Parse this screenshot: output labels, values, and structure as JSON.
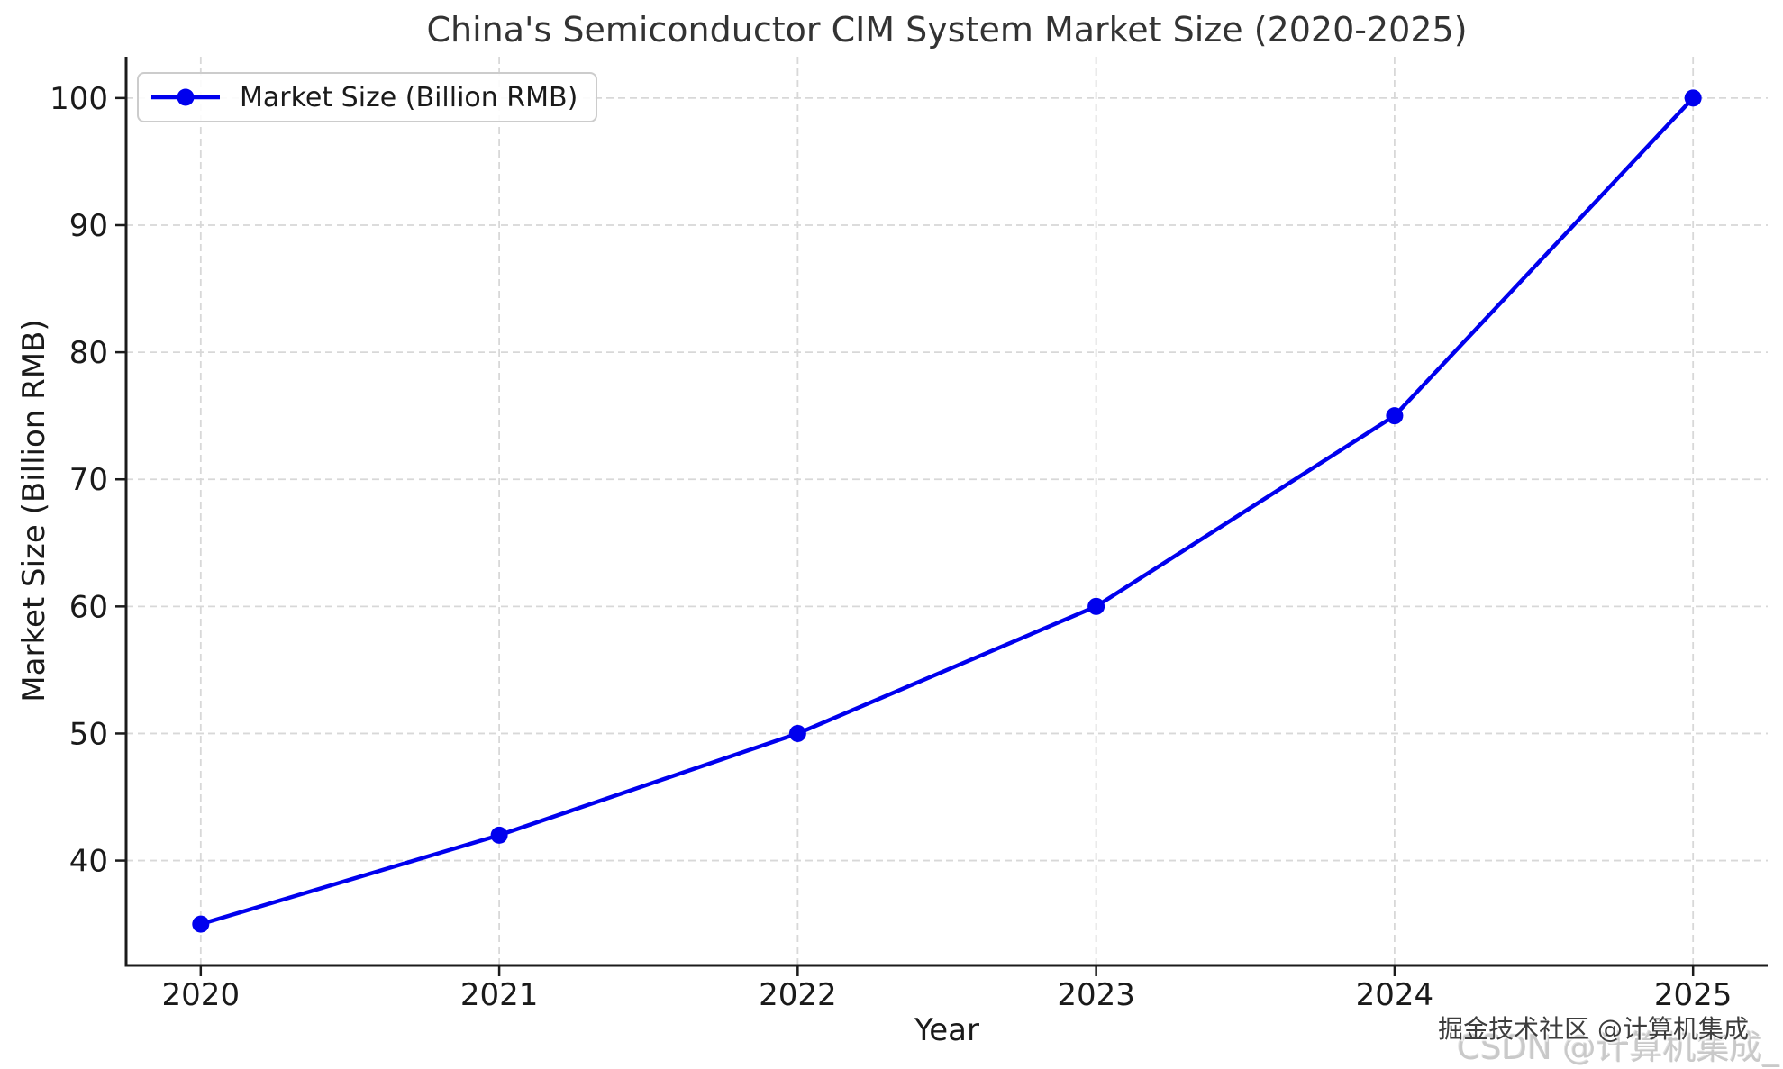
{
  "chart_data": {
    "type": "line",
    "title": "China's Semiconductor CIM System Market Size (2020-2025)",
    "xlabel": "Year",
    "ylabel": "Market Size (Billion RMB)",
    "x": [
      2020,
      2021,
      2022,
      2023,
      2024,
      2025
    ],
    "xtick_labels": [
      "2020",
      "2021",
      "2022",
      "2023",
      "2024",
      "2025"
    ],
    "yticks": [
      40,
      50,
      60,
      70,
      80,
      90,
      100
    ],
    "xlim": [
      2019.75,
      2025.25
    ],
    "ylim": [
      31.75,
      103.25
    ],
    "grid": "dashed",
    "legend_position": "upper left",
    "series": [
      {
        "name": "Market Size (Billion RMB)",
        "color": "#0000ee",
        "marker": "circle",
        "values": [
          35,
          42,
          50,
          60,
          75,
          100
        ]
      }
    ]
  },
  "legend": {
    "label": "Market Size (Billion RMB)"
  },
  "watermarks": {
    "back": "CSDN @计算机集成_",
    "front": "掘金技术社区 @计算机集成"
  },
  "colors": {
    "line": "#0000ee",
    "grid": "#d8d8d8",
    "axis": "#1b1b1b",
    "text": "#1a1a1a",
    "legend_border": "#cccccc",
    "watermark_front": "#3d3d3d",
    "watermark_back": "#c9c9c9"
  }
}
